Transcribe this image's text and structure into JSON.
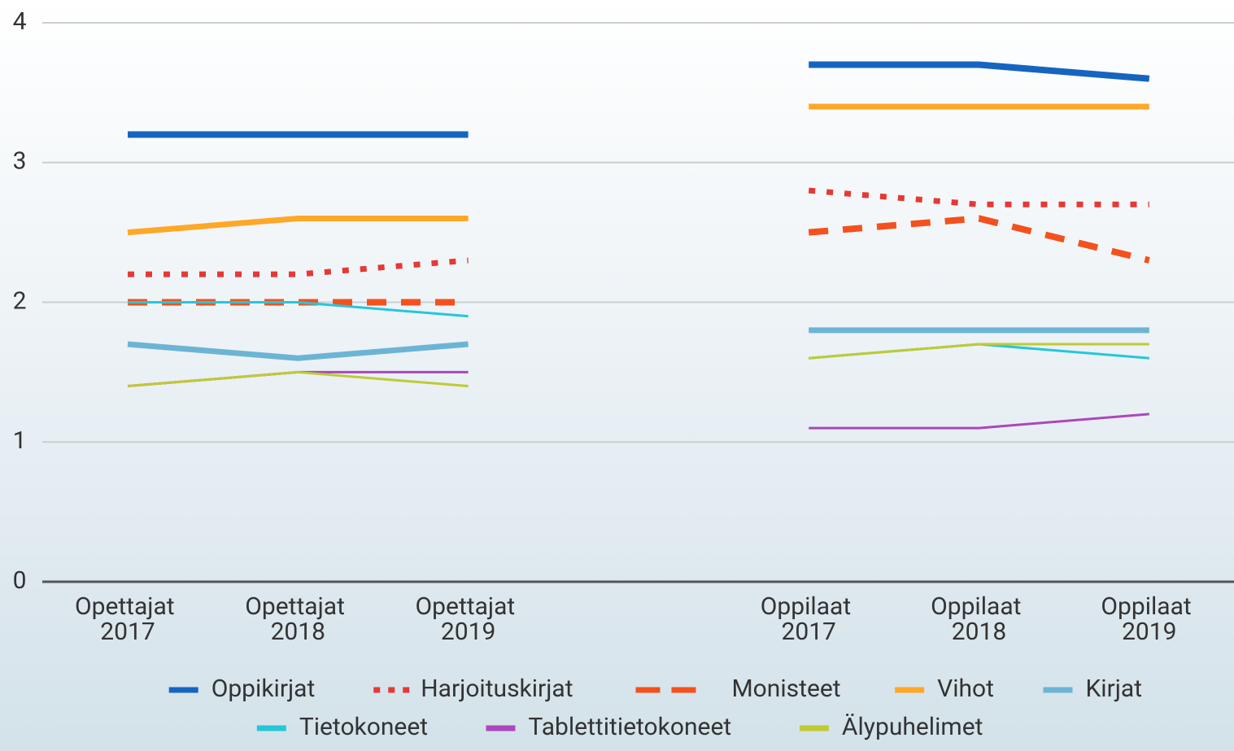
{
  "chart_data": {
    "type": "line",
    "categories": [
      "Opettajat 2017",
      "Opettajat 2018",
      "Opettajat 2019",
      null,
      "Oppilaat 2017",
      "Oppilaat 2018",
      "Oppilaat 2019"
    ],
    "series": [
      {
        "name": "Oppikirjat",
        "color": "#1565c0",
        "style": "solid",
        "values": [
          3.2,
          3.2,
          3.2,
          null,
          3.7,
          3.7,
          3.6
        ]
      },
      {
        "name": "Harjoituskirjat",
        "color": "#e53935",
        "style": "dotted",
        "values": [
          2.2,
          2.2,
          2.3,
          null,
          2.8,
          2.7,
          2.7
        ]
      },
      {
        "name": "Monisteet",
        "color": "#f4511e",
        "style": "dashed",
        "values": [
          2.0,
          2.0,
          2.0,
          null,
          2.5,
          2.6,
          2.3
        ]
      },
      {
        "name": "Vihot",
        "color": "#ffa726",
        "style": "solid",
        "values": [
          2.5,
          2.6,
          2.6,
          null,
          3.4,
          3.4,
          3.4
        ]
      },
      {
        "name": "Kirjat",
        "color": "#6cb4d4",
        "style": "solid",
        "values": [
          1.7,
          1.6,
          1.7,
          null,
          1.8,
          1.8,
          1.8
        ]
      },
      {
        "name": "Tietokoneet",
        "color": "#26c6da",
        "style": "solid",
        "values": [
          2.0,
          2.0,
          1.9,
          null,
          1.6,
          1.7,
          1.6
        ]
      },
      {
        "name": "Tablettitietokoneet",
        "color": "#ab47bc",
        "style": "solid",
        "values": [
          1.4,
          1.5,
          1.5,
          null,
          1.1,
          1.1,
          1.2
        ]
      },
      {
        "name": "Älypuhelimet",
        "color": "#c0ca33",
        "style": "solid",
        "values": [
          1.4,
          1.5,
          1.4,
          null,
          1.6,
          1.7,
          1.7
        ]
      }
    ],
    "ylim": [
      0,
      4
    ],
    "yticks": [
      0,
      1,
      2,
      3,
      4
    ],
    "grid": true
  }
}
